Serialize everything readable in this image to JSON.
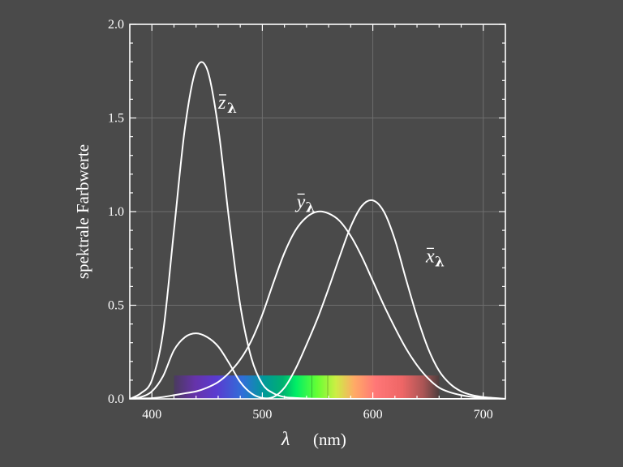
{
  "chart_data": {
    "type": "line",
    "ylabel": "spektrale Farbwerte",
    "xlabel_symbol": "λ",
    "xlabel_unit": "(nm)",
    "xlim": [
      380,
      720
    ],
    "ylim": [
      0,
      2.0
    ],
    "x_ticks": [
      400,
      500,
      600,
      700
    ],
    "x_tick_labels": [
      "400",
      "500",
      "600",
      "700"
    ],
    "y_ticks": [
      0,
      0.5,
      1.0,
      1.5,
      2.0
    ],
    "y_tick_labels": [
      "0.0",
      "0.5",
      "1.0",
      "1.5",
      "2.0"
    ],
    "grid": true,
    "background_color": "#4a4a4a",
    "line_color": "#ffffff",
    "grid_color": "#6e6e6e",
    "spectrum_band": {
      "x_range": [
        420,
        660
      ],
      "height": 0.125
    },
    "x": [
      380,
      390,
      400,
      410,
      420,
      430,
      440,
      450,
      460,
      470,
      480,
      490,
      500,
      510,
      520,
      530,
      540,
      550,
      560,
      570,
      580,
      590,
      600,
      610,
      620,
      630,
      640,
      650,
      660,
      670,
      680,
      690,
      700,
      710,
      720
    ],
    "series": [
      {
        "name": "x̄",
        "symbol": "x",
        "subscript": "λ",
        "values": [
          0.0,
          0.01,
          0.04,
          0.12,
          0.26,
          0.33,
          0.35,
          0.33,
          0.28,
          0.19,
          0.09,
          0.03,
          0.005,
          0.01,
          0.06,
          0.16,
          0.29,
          0.43,
          0.59,
          0.76,
          0.92,
          1.03,
          1.06,
          1.0,
          0.85,
          0.64,
          0.44,
          0.27,
          0.15,
          0.08,
          0.04,
          0.02,
          0.01,
          0.005,
          0.0
        ]
      },
      {
        "name": "ȳ",
        "symbol": "y",
        "subscript": "λ",
        "values": [
          0.0,
          0.002,
          0.004,
          0.01,
          0.02,
          0.03,
          0.04,
          0.06,
          0.09,
          0.14,
          0.21,
          0.31,
          0.45,
          0.62,
          0.78,
          0.9,
          0.97,
          1.0,
          0.99,
          0.95,
          0.87,
          0.76,
          0.63,
          0.5,
          0.38,
          0.27,
          0.18,
          0.11,
          0.06,
          0.035,
          0.02,
          0.01,
          0.005,
          0.002,
          0.0
        ]
      },
      {
        "name": "z̄",
        "symbol": "z",
        "subscript": "λ",
        "values": [
          0.0,
          0.03,
          0.1,
          0.35,
          0.9,
          1.45,
          1.76,
          1.76,
          1.45,
          0.95,
          0.5,
          0.22,
          0.08,
          0.03,
          0.01,
          0.005,
          0.002,
          0.001,
          0.0,
          0.0,
          0.0,
          0.0,
          0.0,
          0.0,
          0.0,
          0.0,
          0.0,
          0.0,
          0.0,
          0.0,
          0.0,
          0.0,
          0.0,
          0.0,
          0.0
        ]
      }
    ],
    "curve_labels": [
      {
        "symbol": "z",
        "subscript": "λ",
        "x": 460,
        "y": 1.55
      },
      {
        "symbol": "y",
        "subscript": "λ",
        "x": 531,
        "y": 1.02
      },
      {
        "symbol": "x",
        "subscript": "λ",
        "x": 648,
        "y": 0.73
      }
    ]
  }
}
